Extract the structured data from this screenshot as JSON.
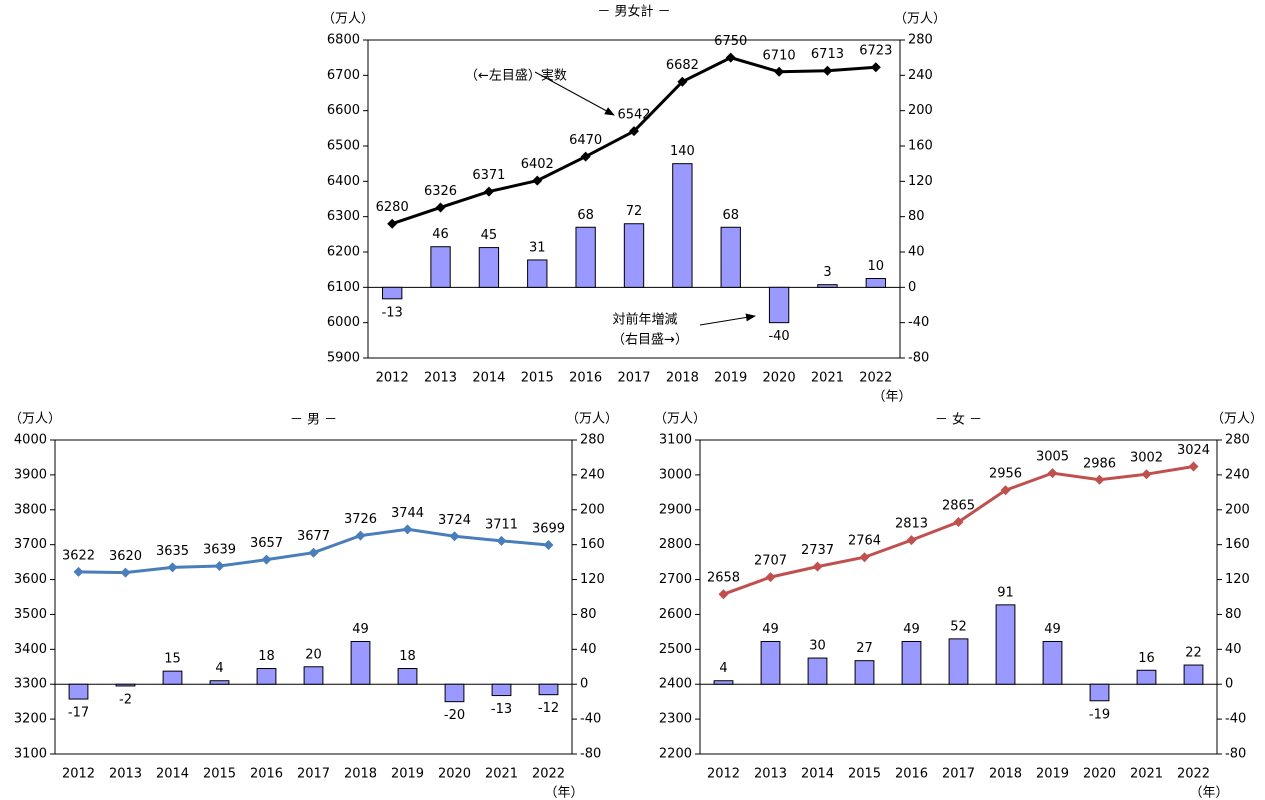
{
  "chart_data": [
    {
      "type": "combo",
      "title": "－ 男女計 －",
      "y_unit_label": "（万人）",
      "y2_unit_label": "（万人）",
      "x_unit_label": "（年）",
      "categories": [
        "2012",
        "2013",
        "2014",
        "2015",
        "2016",
        "2017",
        "2018",
        "2019",
        "2020",
        "2021",
        "2022"
      ],
      "ylim": [
        5900,
        6800
      ],
      "yticks": [
        5900,
        6000,
        6100,
        6200,
        6300,
        6400,
        6500,
        6600,
        6700,
        6800
      ],
      "y2lim": [
        -80,
        280
      ],
      "y2ticks": [
        -80,
        -40,
        0,
        40,
        80,
        120,
        160,
        200,
        240,
        280
      ],
      "annotations": [
        "（←左目盛）実数",
        "対前年増減",
        "（右目盛→）"
      ],
      "series": [
        {
          "type": "bar",
          "axis": "y2",
          "color": "#9999ff",
          "values": [
            -13,
            46,
            45,
            31,
            68,
            72,
            140,
            68,
            -40,
            3,
            10
          ]
        },
        {
          "type": "line",
          "color": "#000000",
          "values": [
            6280,
            6326,
            6371,
            6402,
            6470,
            6542,
            6682,
            6750,
            6710,
            6713,
            6723
          ]
        }
      ]
    },
    {
      "type": "combo",
      "title": "－ 男 －",
      "y_unit_label": "（万人）",
      "y2_unit_label": "（万人）",
      "x_unit_label": "（年）",
      "categories": [
        "2012",
        "2013",
        "2014",
        "2015",
        "2016",
        "2017",
        "2018",
        "2019",
        "2020",
        "2021",
        "2022"
      ],
      "ylim": [
        3100,
        4000
      ],
      "yticks": [
        3100,
        3200,
        3300,
        3400,
        3500,
        3600,
        3700,
        3800,
        3900,
        4000
      ],
      "y2lim": [
        -80,
        280
      ],
      "y2ticks": [
        -80,
        -40,
        0,
        40,
        80,
        120,
        160,
        200,
        240,
        280
      ],
      "series": [
        {
          "type": "bar",
          "axis": "y2",
          "color": "#9999ff",
          "values": [
            -17,
            -2,
            15,
            4,
            18,
            20,
            49,
            18,
            -20,
            -13,
            -12
          ]
        },
        {
          "type": "line",
          "color": "#4a7ebb",
          "values": [
            3622,
            3620,
            3635,
            3639,
            3657,
            3677,
            3726,
            3744,
            3724,
            3711,
            3699
          ]
        }
      ]
    },
    {
      "type": "combo",
      "title": "－ 女 －",
      "y_unit_label": "（万人）",
      "y2_unit_label": "（万人）",
      "x_unit_label": "（年）",
      "categories": [
        "2012",
        "2013",
        "2014",
        "2015",
        "2016",
        "2017",
        "2018",
        "2019",
        "2020",
        "2021",
        "2022"
      ],
      "ylim": [
        2200,
        3100
      ],
      "yticks": [
        2200,
        2300,
        2400,
        2500,
        2600,
        2700,
        2800,
        2900,
        3000,
        3100
      ],
      "y2lim": [
        -80,
        280
      ],
      "y2ticks": [
        -80,
        -40,
        0,
        40,
        80,
        120,
        160,
        200,
        240,
        280
      ],
      "series": [
        {
          "type": "bar",
          "axis": "y2",
          "color": "#9999ff",
          "values": [
            4,
            49,
            30,
            27,
            49,
            52,
            91,
            49,
            -19,
            16,
            22
          ]
        },
        {
          "type": "line",
          "color": "#c0504d",
          "values": [
            2658,
            2707,
            2737,
            2764,
            2813,
            2865,
            2956,
            3005,
            2986,
            3002,
            3024
          ]
        }
      ]
    }
  ]
}
